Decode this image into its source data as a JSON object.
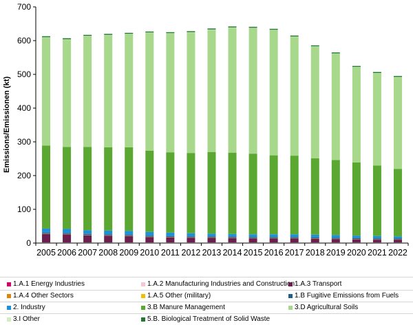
{
  "chart_data": {
    "type": "bar",
    "stacked": true,
    "ylabel": "Emissions/Emissionen (kt)",
    "ylim": [
      0,
      700
    ],
    "yticks": [
      0,
      100,
      200,
      300,
      400,
      500,
      600,
      700
    ],
    "grid": false,
    "legend_position": "bottom",
    "categories": [
      "2005",
      "2006",
      "2007",
      "2008",
      "2009",
      "2010",
      "2011",
      "2012",
      "2013",
      "2014",
      "2015",
      "2016",
      "2017",
      "2018",
      "2019",
      "2020",
      "2021",
      "2022"
    ],
    "series": [
      {
        "name": "1.A.1 Energy Industries",
        "color": "#cc0066",
        "values": [
          1,
          1,
          1,
          1,
          1,
          1,
          1,
          1,
          1,
          1,
          1,
          1,
          1,
          1,
          1,
          1,
          1,
          1
        ]
      },
      {
        "name": "1.A.2 Manufacturing Industries and Construction",
        "color": "#f4c6da",
        "values": [
          1,
          1,
          1,
          1,
          1,
          1,
          1,
          1,
          1,
          1,
          1,
          1,
          1,
          1,
          1,
          1,
          1,
          1
        ]
      },
      {
        "name": "1.A.3 Transport",
        "color": "#6a1f4e",
        "values": [
          25,
          24,
          21,
          20,
          19,
          16,
          15,
          14,
          14,
          13,
          12,
          12,
          12,
          11,
          10,
          9,
          8,
          8
        ]
      },
      {
        "name": "1.A.4 Other Sectors",
        "color": "#d9860a",
        "values": [
          1,
          1,
          1,
          1,
          1,
          1,
          1,
          1,
          1,
          1,
          1,
          1,
          1,
          1,
          1,
          1,
          1,
          1
        ]
      },
      {
        "name": "1.A.5 Other (military)",
        "color": "#f0c000",
        "values": [
          0,
          0,
          0,
          0,
          0,
          0,
          0,
          0,
          0,
          0,
          0,
          0,
          0,
          0,
          0,
          0,
          0,
          0
        ]
      },
      {
        "name": "1.B Fugitive Emissions from Fuels",
        "color": "#1f5f8b",
        "values": [
          3,
          3,
          3,
          3,
          3,
          3,
          3,
          3,
          3,
          3,
          3,
          3,
          3,
          3,
          3,
          3,
          3,
          3
        ]
      },
      {
        "name": "2. Industry",
        "color": "#1e90d8",
        "values": [
          12,
          12,
          11,
          11,
          11,
          11,
          10,
          9,
          8,
          8,
          8,
          8,
          8,
          8,
          8,
          7,
          7,
          6
        ]
      },
      {
        "name": "3.B Manure Management",
        "color": "#5aa832",
        "values": [
          246,
          243,
          247,
          247,
          248,
          241,
          238,
          238,
          242,
          241,
          239,
          234,
          233,
          226,
          222,
          217,
          209,
          200
        ]
      },
      {
        "name": "3.D Agricultural Soils",
        "color": "#a8d88c",
        "values": [
          320,
          318,
          328,
          332,
          335,
          349,
          352,
          357,
          362,
          370,
          372,
          371,
          352,
          331,
          315,
          282,
          273,
          271
        ]
      },
      {
        "name": "3.I Other",
        "color": "#d2ecbf",
        "values": [
          1,
          1,
          1,
          1,
          1,
          1,
          1,
          1,
          1,
          1,
          1,
          1,
          1,
          1,
          1,
          1,
          1,
          1
        ]
      },
      {
        "name": "5.B. Biological Treatment of Solid Waste",
        "color": "#1f7a2e",
        "values": [
          3,
          3,
          3,
          3,
          3,
          3,
          3,
          3,
          3,
          3,
          3,
          3,
          3,
          3,
          3,
          3,
          3,
          3
        ]
      }
    ]
  }
}
